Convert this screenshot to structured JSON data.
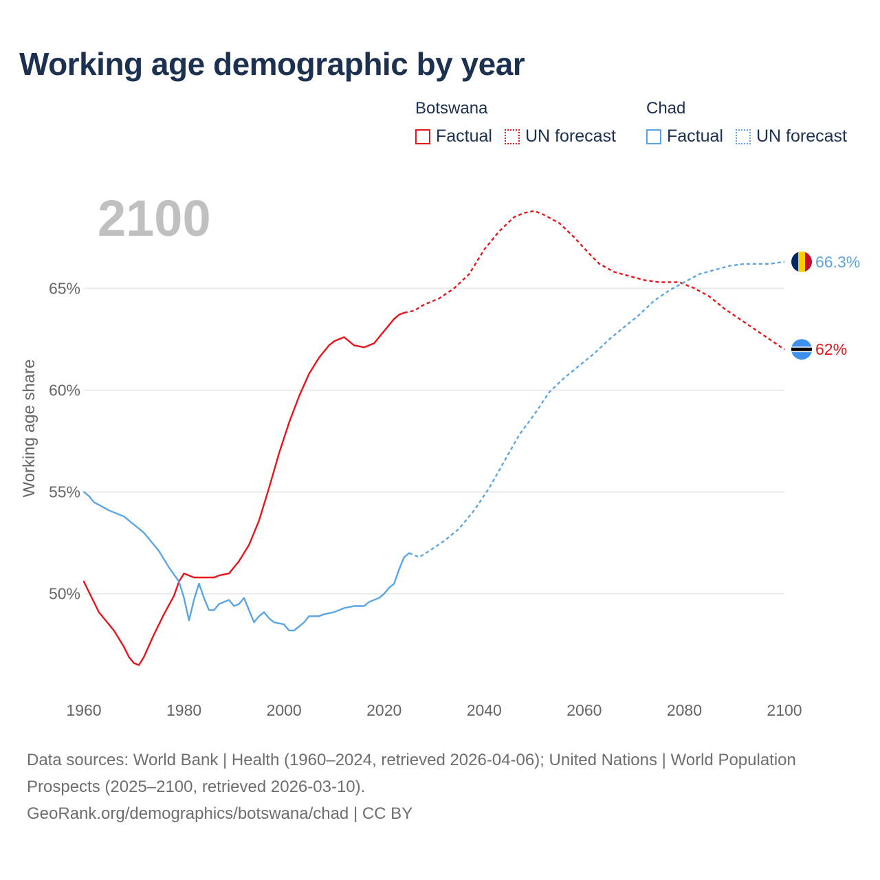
{
  "title": "Working age demographic by year",
  "year_watermark": "2100",
  "legend": {
    "groups": [
      {
        "country": "Botswana",
        "factual_label": "Factual",
        "forecast_label": "UN forecast",
        "color": "#e8141b"
      },
      {
        "country": "Chad",
        "factual_label": "Factual",
        "forecast_label": "UN forecast",
        "color": "#5aa5e2"
      }
    ]
  },
  "sources": {
    "line1": "Data sources: World Bank | Health (1960–2024, retrieved 2026-04-06); United Nations | World Population Prospects (2025–2100, retrieved 2026-03-10).",
    "line2": "GeoRank.org/demographics/botswana/chad | CC BY"
  },
  "chart_data": {
    "type": "line",
    "ylabel": "Working age share",
    "xlim": [
      1960,
      2100
    ],
    "ylim": [
      45.3,
      69.5
    ],
    "x_ticks": [
      1960,
      1980,
      2000,
      2020,
      2040,
      2060,
      2080,
      2100
    ],
    "y_ticks": [
      {
        "value": 50,
        "label": "50%"
      },
      {
        "value": 55,
        "label": "55%"
      },
      {
        "value": 60,
        "label": "60%"
      },
      {
        "value": 65,
        "label": "65%"
      }
    ],
    "series": [
      {
        "name": "Botswana",
        "color": "#e8141b",
        "end_label": "62%",
        "factual": [
          [
            1960,
            50.6
          ],
          [
            1963,
            49.1
          ],
          [
            1966,
            48.2
          ],
          [
            1968,
            47.4
          ],
          [
            1969,
            46.9
          ],
          [
            1970,
            46.6
          ],
          [
            1971,
            46.5
          ],
          [
            1972,
            46.9
          ],
          [
            1974,
            48.0
          ],
          [
            1976,
            49.0
          ],
          [
            1978,
            49.9
          ],
          [
            1979,
            50.6
          ],
          [
            1980,
            51.0
          ],
          [
            1982,
            50.8
          ],
          [
            1986,
            50.8
          ],
          [
            1987,
            50.9
          ],
          [
            1989,
            51.0
          ],
          [
            1991,
            51.6
          ],
          [
            1993,
            52.4
          ],
          [
            1995,
            53.6
          ],
          [
            1997,
            55.2
          ],
          [
            1999,
            56.9
          ],
          [
            2001,
            58.4
          ],
          [
            2003,
            59.7
          ],
          [
            2005,
            60.8
          ],
          [
            2007,
            61.6
          ],
          [
            2009,
            62.2
          ],
          [
            2010,
            62.4
          ],
          [
            2012,
            62.6
          ],
          [
            2014,
            62.2
          ],
          [
            2016,
            62.1
          ],
          [
            2018,
            62.3
          ],
          [
            2020,
            62.9
          ],
          [
            2022,
            63.5
          ],
          [
            2023,
            63.7
          ],
          [
            2024,
            63.8
          ]
        ],
        "forecast": [
          [
            2024,
            63.8
          ],
          [
            2026,
            63.9
          ],
          [
            2028,
            64.2
          ],
          [
            2031,
            64.5
          ],
          [
            2034,
            65.0
          ],
          [
            2037,
            65.7
          ],
          [
            2040,
            66.9
          ],
          [
            2043,
            67.8
          ],
          [
            2046,
            68.5
          ],
          [
            2048,
            68.7
          ],
          [
            2050,
            68.8
          ],
          [
            2052,
            68.6
          ],
          [
            2055,
            68.2
          ],
          [
            2058,
            67.5
          ],
          [
            2061,
            66.7
          ],
          [
            2063,
            66.2
          ],
          [
            2066,
            65.8
          ],
          [
            2069,
            65.6
          ],
          [
            2072,
            65.4
          ],
          [
            2075,
            65.3
          ],
          [
            2079,
            65.3
          ],
          [
            2082,
            65.0
          ],
          [
            2085,
            64.6
          ],
          [
            2088,
            64.0
          ],
          [
            2091,
            63.5
          ],
          [
            2094,
            63.0
          ],
          [
            2097,
            62.5
          ],
          [
            2100,
            62.0
          ]
        ]
      },
      {
        "name": "Chad",
        "color": "#5aa5e2",
        "end_label": "66.3%",
        "factual": [
          [
            1960,
            55.0
          ],
          [
            1961,
            54.8
          ],
          [
            1962,
            54.5
          ],
          [
            1965,
            54.1
          ],
          [
            1968,
            53.8
          ],
          [
            1970,
            53.4
          ],
          [
            1972,
            53.0
          ],
          [
            1975,
            52.1
          ],
          [
            1977,
            51.3
          ],
          [
            1979,
            50.6
          ],
          [
            1980,
            49.8
          ],
          [
            1981,
            48.7
          ],
          [
            1982,
            49.7
          ],
          [
            1983,
            50.5
          ],
          [
            1984,
            49.8
          ],
          [
            1985,
            49.2
          ],
          [
            1986,
            49.2
          ],
          [
            1987,
            49.5
          ],
          [
            1989,
            49.7
          ],
          [
            1990,
            49.4
          ],
          [
            1991,
            49.5
          ],
          [
            1992,
            49.8
          ],
          [
            1993,
            49.2
          ],
          [
            1994,
            48.6
          ],
          [
            1995,
            48.9
          ],
          [
            1996,
            49.1
          ],
          [
            1997,
            48.8
          ],
          [
            1998,
            48.6
          ],
          [
            2000,
            48.5
          ],
          [
            2001,
            48.2
          ],
          [
            2002,
            48.2
          ],
          [
            2003,
            48.4
          ],
          [
            2004,
            48.6
          ],
          [
            2005,
            48.9
          ],
          [
            2007,
            48.9
          ],
          [
            2008,
            49.0
          ],
          [
            2010,
            49.1
          ],
          [
            2011,
            49.2
          ],
          [
            2012,
            49.3
          ],
          [
            2014,
            49.4
          ],
          [
            2016,
            49.4
          ],
          [
            2017,
            49.6
          ],
          [
            2019,
            49.8
          ],
          [
            2020,
            50.0
          ],
          [
            2021,
            50.3
          ],
          [
            2022,
            50.5
          ],
          [
            2023,
            51.2
          ],
          [
            2024,
            51.8
          ],
          [
            2025,
            52.0
          ]
        ],
        "forecast": [
          [
            2025,
            52.0
          ],
          [
            2027,
            51.8
          ],
          [
            2029,
            52.1
          ],
          [
            2032,
            52.6
          ],
          [
            2035,
            53.2
          ],
          [
            2038,
            54.1
          ],
          [
            2041,
            55.2
          ],
          [
            2044,
            56.5
          ],
          [
            2047,
            57.8
          ],
          [
            2050,
            58.8
          ],
          [
            2053,
            59.9
          ],
          [
            2056,
            60.6
          ],
          [
            2059,
            61.2
          ],
          [
            2062,
            61.8
          ],
          [
            2065,
            62.5
          ],
          [
            2068,
            63.1
          ],
          [
            2071,
            63.7
          ],
          [
            2074,
            64.4
          ],
          [
            2077,
            64.9
          ],
          [
            2080,
            65.3
          ],
          [
            2083,
            65.7
          ],
          [
            2086,
            65.9
          ],
          [
            2089,
            66.1
          ],
          [
            2092,
            66.2
          ],
          [
            2097,
            66.2
          ],
          [
            2100,
            66.3
          ]
        ]
      }
    ]
  }
}
